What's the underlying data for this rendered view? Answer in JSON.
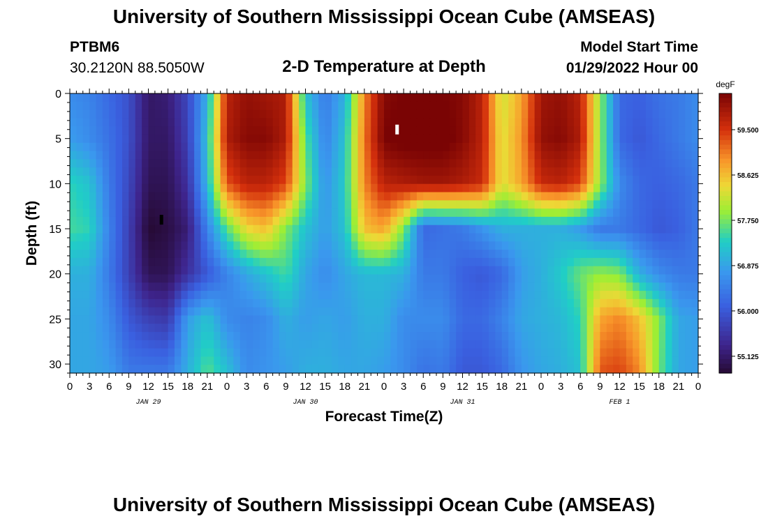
{
  "header": {
    "title": "University of Southern Mississippi Ocean Cube (AMSEAS)",
    "station": "PTBM6",
    "coords": "30.2120N  88.5050W",
    "subtitle": "2-D Temperature at Depth",
    "start_label": "Model Start Time",
    "start_value": "01/29/2022 Hour 00"
  },
  "footer": {
    "title": "University of Southern Mississippi Ocean Cube (AMSEAS)"
  },
  "chart_data": {
    "type": "heatmap",
    "title": "2-D Temperature at Depth",
    "xlabel": "Forecast Time(Z)",
    "ylabel": "Depth (ft)",
    "x_unit": "hours since 01/29/2022 00Z",
    "xlim": [
      0,
      96
    ],
    "ylim": [
      0,
      31
    ],
    "y_inverted": true,
    "x_ticks": [
      0,
      3,
      6,
      9,
      12,
      15,
      18,
      21,
      24,
      27,
      30,
      33,
      36,
      39,
      42,
      45,
      48,
      51,
      54,
      57,
      60,
      63,
      66,
      69,
      72,
      75,
      78,
      81,
      84,
      87,
      90,
      93,
      96
    ],
    "x_tick_labels": [
      "0",
      "3",
      "6",
      "9",
      "12",
      "15",
      "18",
      "21",
      "0",
      "3",
      "6",
      "9",
      "12",
      "15",
      "18",
      "21",
      "0",
      "3",
      "6",
      "9",
      "12",
      "15",
      "18",
      "21",
      "0",
      "3",
      "6",
      "9",
      "12",
      "15",
      "18",
      "21",
      "0"
    ],
    "date_labels": [
      {
        "x": 12,
        "text": "JAN 29"
      },
      {
        "x": 36,
        "text": "JAN 30"
      },
      {
        "x": 60,
        "text": "JAN 31"
      },
      {
        "x": 84,
        "text": "FEB 1"
      }
    ],
    "y_ticks": [
      0,
      5,
      10,
      15,
      20,
      25,
      30
    ],
    "y_tick_labels": [
      "0",
      "5",
      "10",
      "15",
      "20",
      "25",
      "30"
    ],
    "colorbar": {
      "unit": "degF",
      "min": 54.8,
      "max": 60.2,
      "ticks": [
        55.125,
        56.0,
        56.875,
        57.75,
        58.625,
        59.5
      ],
      "tick_labels": [
        "55.125",
        "56.000",
        "56.875",
        "57.750",
        "58.625",
        "59.500"
      ]
    },
    "markers": [
      {
        "x": 14,
        "depth": 14,
        "label": "min",
        "color": "#000000"
      },
      {
        "x": 50,
        "depth": 4,
        "label": "max",
        "color": "#ffffff"
      }
    ],
    "times": [
      0,
      3,
      6,
      9,
      12,
      15,
      18,
      21,
      24,
      27,
      30,
      33,
      36,
      39,
      42,
      45,
      48,
      51,
      54,
      57,
      60,
      63,
      66,
      69,
      72,
      75,
      78,
      81,
      84,
      87,
      90,
      93,
      96
    ],
    "depths": [
      0,
      5,
      10,
      15,
      20,
      25,
      31
    ],
    "temperature_degF": [
      [
        56.6,
        56.5,
        56.2,
        55.9,
        55.1,
        55.2,
        55.8,
        57.0,
        59.7,
        60.0,
        59.9,
        59.8,
        57.2,
        56.4,
        57.0,
        59.0,
        60.1,
        60.2,
        60.2,
        60.2,
        60.1,
        59.7,
        58.2,
        58.8,
        59.9,
        60.0,
        59.7,
        57.9,
        56.2,
        56.1,
        56.3,
        56.4,
        56.6
      ],
      [
        56.8,
        56.6,
        56.3,
        55.9,
        55.1,
        55.1,
        55.7,
        57.2,
        59.8,
        60.1,
        60.1,
        59.8,
        57.6,
        56.5,
        57.2,
        59.1,
        60.2,
        60.3,
        60.3,
        60.3,
        60.1,
        59.7,
        58.3,
        58.9,
        60.0,
        60.1,
        59.8,
        57.9,
        56.2,
        56.0,
        56.2,
        56.4,
        56.6
      ],
      [
        57.4,
        57.2,
        56.4,
        55.8,
        55.0,
        55.0,
        55.5,
        57.1,
        59.3,
        59.7,
        59.7,
        59.4,
        57.8,
        56.7,
        57.3,
        59.0,
        59.7,
        59.8,
        59.9,
        59.9,
        59.8,
        59.6,
        58.3,
        58.8,
        59.6,
        59.7,
        59.4,
        57.9,
        56.6,
        56.2,
        56.1,
        56.2,
        56.4
      ],
      [
        57.5,
        57.4,
        56.5,
        55.7,
        54.8,
        54.9,
        55.2,
        56.5,
        57.6,
        58.4,
        58.6,
        57.8,
        57.2,
        56.8,
        57.2,
        58.6,
        58.8,
        57.8,
        56.2,
        56.3,
        56.4,
        56.7,
        57.0,
        57.0,
        57.0,
        57.0,
        56.8,
        56.4,
        56.4,
        56.2,
        56.0,
        56.1,
        56.4
      ],
      [
        57.0,
        57.0,
        56.4,
        55.7,
        55.0,
        55.0,
        55.5,
        56.0,
        56.5,
        56.9,
        57.2,
        57.5,
        56.9,
        56.6,
        56.9,
        57.1,
        57.1,
        57.0,
        56.4,
        56.4,
        56.1,
        56.0,
        56.2,
        56.8,
        57.0,
        57.3,
        57.7,
        57.9,
        57.8,
        57.0,
        56.6,
        56.4,
        56.4
      ],
      [
        56.9,
        56.9,
        56.6,
        56.0,
        55.7,
        55.6,
        56.8,
        57.2,
        56.6,
        56.5,
        56.6,
        57.0,
        56.8,
        56.9,
        56.8,
        57.0,
        57.0,
        56.6,
        56.6,
        56.6,
        56.2,
        56.2,
        56.5,
        56.9,
        57.0,
        57.1,
        57.4,
        58.8,
        59.0,
        58.6,
        57.8,
        56.9,
        56.8
      ],
      [
        56.9,
        56.9,
        56.8,
        56.4,
        56.4,
        56.4,
        57.0,
        57.6,
        57.2,
        56.6,
        56.7,
        56.8,
        57.0,
        57.0,
        56.9,
        56.9,
        56.8,
        56.6,
        56.3,
        56.4,
        56.0,
        56.0,
        56.2,
        56.7,
        56.9,
        57.0,
        57.2,
        59.3,
        59.4,
        59.0,
        57.7,
        56.9,
        56.8
      ]
    ]
  }
}
